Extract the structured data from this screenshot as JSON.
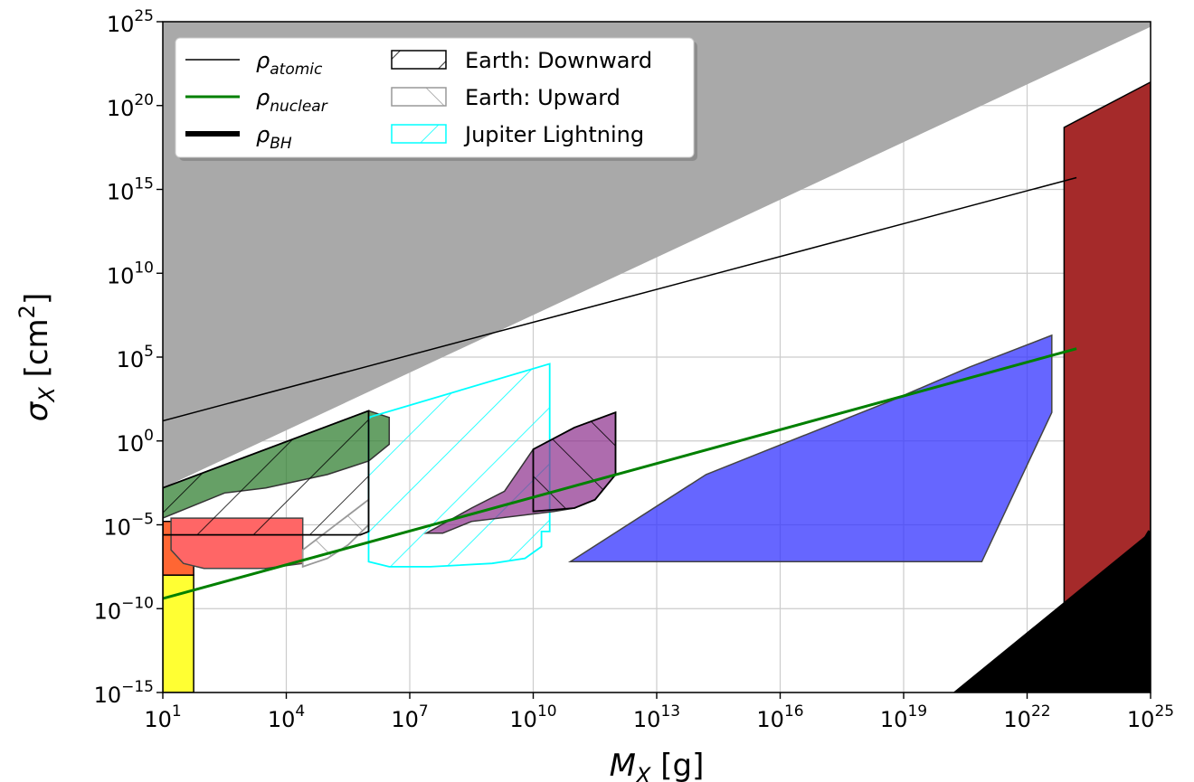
{
  "chart_data": {
    "type": "area",
    "xlabel": {
      "main": "M",
      "sub": "X",
      "unit": " [g]"
    },
    "ylabel": {
      "main": "σ",
      "sub": "X",
      "unit_pre": " [cm",
      "unit_sup": "2",
      "unit_post": "]"
    },
    "x_scale": "log",
    "y_scale": "log",
    "x_log_range": [
      1,
      25
    ],
    "y_log_range": [
      -15,
      25
    ],
    "grid": true,
    "x_ticks": [
      {
        "exp": 1,
        "base": "10",
        "sup": "1"
      },
      {
        "exp": 4,
        "base": "10",
        "sup": "4"
      },
      {
        "exp": 7,
        "base": "10",
        "sup": "7"
      },
      {
        "exp": 10,
        "base": "10",
        "sup": "10"
      },
      {
        "exp": 13,
        "base": "10",
        "sup": "13"
      },
      {
        "exp": 16,
        "base": "10",
        "sup": "16"
      },
      {
        "exp": 19,
        "base": "10",
        "sup": "19"
      },
      {
        "exp": 22,
        "base": "10",
        "sup": "22"
      },
      {
        "exp": 25,
        "base": "10",
        "sup": "25"
      }
    ],
    "y_ticks": [
      {
        "exp": -15,
        "base": "10",
        "sup": "−15"
      },
      {
        "exp": -10,
        "base": "10",
        "sup": "−10"
      },
      {
        "exp": -5,
        "base": "10",
        "sup": "−5"
      },
      {
        "exp": 0,
        "base": "10",
        "sup": "0"
      },
      {
        "exp": 5,
        "base": "10",
        "sup": "5"
      },
      {
        "exp": 10,
        "base": "10",
        "sup": "10"
      },
      {
        "exp": 15,
        "base": "10",
        "sup": "15"
      },
      {
        "exp": 20,
        "base": "10",
        "sup": "20"
      },
      {
        "exp": 25,
        "base": "10",
        "sup": "25"
      }
    ],
    "legend": {
      "position": "top-left",
      "entries": [
        {
          "main": "ρ",
          "sub": "atomic",
          "kind": "line",
          "color": "#000000",
          "width": 1.5
        },
        {
          "main": "ρ",
          "sub": "nuclear",
          "kind": "line",
          "color": "#008000",
          "width": 3
        },
        {
          "main": "ρ",
          "sub": "BH",
          "kind": "line",
          "color": "#000000",
          "width": 6
        },
        {
          "text": "Earth: Downward",
          "kind": "hatch",
          "color": "#000000",
          "hatch": "back"
        },
        {
          "text": "Earth: Upward",
          "kind": "hatch",
          "color": "#999999",
          "hatch": "fwd"
        },
        {
          "text": "Jupiter Lightning",
          "kind": "hatch",
          "color": "#00ffff",
          "hatch": "back"
        }
      ]
    },
    "series": [
      {
        "name": "ρ_atomic",
        "kind": "line",
        "color": "#000000",
        "width": 1.5,
        "points": [
          [
            1,
            1.2
          ],
          [
            23.2,
            15.7
          ]
        ]
      },
      {
        "name": "ρ_nuclear",
        "kind": "line",
        "color": "#008000",
        "width": 3,
        "points": [
          [
            1,
            -9.4
          ],
          [
            23.2,
            5.5
          ]
        ]
      },
      {
        "name": "ρ_BH",
        "kind": "line",
        "color": "#000000",
        "width": 6,
        "points": [
          [
            22.7,
            -15
          ],
          [
            25,
            -5.4
          ]
        ]
      }
    ],
    "regions": [
      {
        "kind": "fill",
        "color": "#a9a9a9",
        "edge": "none",
        "points": [
          [
            1,
            -2.8
          ],
          [
            25,
            24.7
          ],
          [
            25,
            25
          ],
          [
            1,
            25
          ]
        ]
      },
      {
        "kind": "fill",
        "color": "#ffff33",
        "edge": "#000000",
        "points": [
          [
            1,
            -15
          ],
          [
            1.75,
            -15
          ],
          [
            1.75,
            -8.0
          ],
          [
            1,
            -8.0
          ]
        ]
      },
      {
        "kind": "fill",
        "color": "#ff6633",
        "edge": "#000000",
        "points": [
          [
            1,
            -8.0
          ],
          [
            1.75,
            -8.0
          ],
          [
            1.75,
            -4.8
          ],
          [
            1,
            -4.8
          ]
        ]
      },
      {
        "kind": "fill",
        "color": "#ff6666",
        "edge": "#444444",
        "points": [
          [
            1.2,
            -4.6
          ],
          [
            4.4,
            -4.6
          ],
          [
            4.4,
            -7.3
          ],
          [
            3.5,
            -7.6
          ],
          [
            2.0,
            -7.6
          ],
          [
            1.5,
            -7.3
          ],
          [
            1.2,
            -6.5
          ]
        ]
      },
      {
        "kind": "fill",
        "color": "#338033",
        "alpha": 0.75,
        "edge": "#333333",
        "points": [
          [
            1,
            -2.8
          ],
          [
            6.0,
            1.8
          ],
          [
            6.5,
            1.4
          ],
          [
            6.5,
            -0.2
          ],
          [
            6.0,
            -1.2
          ],
          [
            5.0,
            -2.0
          ],
          [
            3.5,
            -2.8
          ],
          [
            2.5,
            -3.1
          ],
          [
            1,
            -4.6
          ]
        ]
      },
      {
        "kind": "hatch",
        "color": "#00ffff",
        "hatch": "back",
        "points": [
          [
            6.0,
            1.4
          ],
          [
            10.4,
            4.6
          ],
          [
            10.4,
            -5.4
          ],
          [
            10.2,
            -5.4
          ],
          [
            10.2,
            -6.3
          ],
          [
            9.8,
            -7.0
          ],
          [
            9.0,
            -7.3
          ],
          [
            7.5,
            -7.5
          ],
          [
            6.5,
            -7.5
          ],
          [
            6.0,
            -7.2
          ]
        ]
      },
      {
        "kind": "hatch",
        "color": "#999999",
        "hatch": "fwd",
        "points": [
          [
            4.4,
            -6.5
          ],
          [
            6.0,
            -3.5
          ],
          [
            6.0,
            -5.0
          ],
          [
            5.5,
            -6.2
          ],
          [
            5.0,
            -7.0
          ],
          [
            4.4,
            -7.5
          ]
        ]
      },
      {
        "kind": "hatch",
        "color": "#000000",
        "hatch": "back",
        "points": [
          [
            1,
            -2.8
          ],
          [
            6.0,
            1.8
          ],
          [
            6.0,
            -5.4
          ],
          [
            5.8,
            -5.6
          ],
          [
            1,
            -5.6
          ]
        ]
      },
      {
        "kind": "fill",
        "color": "#8b2e8b",
        "alpha": 0.7,
        "edge": "#333333",
        "points": [
          [
            7.4,
            -5.5
          ],
          [
            8.5,
            -4.0
          ],
          [
            9.3,
            -3.0
          ],
          [
            10.0,
            -0.5
          ],
          [
            11.0,
            0.8
          ],
          [
            12.0,
            1.7
          ],
          [
            12.0,
            -2.0
          ],
          [
            11.5,
            -3.5
          ],
          [
            11.0,
            -4.0
          ],
          [
            10.5,
            -4.2
          ],
          [
            8.5,
            -4.8
          ],
          [
            7.8,
            -5.5
          ]
        ]
      },
      {
        "kind": "hatch",
        "color": "#000000",
        "hatch": "fwd",
        "points": [
          [
            10.0,
            -0.5
          ],
          [
            11.0,
            0.8
          ],
          [
            12.0,
            1.7
          ],
          [
            12.0,
            -2.0
          ],
          [
            11.5,
            -3.5
          ],
          [
            11.0,
            -4.0
          ],
          [
            10.0,
            -4.2
          ]
        ]
      },
      {
        "kind": "fill",
        "color": "#3333ff",
        "alpha": 0.75,
        "edge": "#444444",
        "points": [
          [
            10.9,
            -7.2
          ],
          [
            20.9,
            -7.2
          ],
          [
            22.6,
            1.7
          ],
          [
            22.6,
            6.3
          ],
          [
            20.6,
            4.4
          ],
          [
            18.7,
            2.4
          ],
          [
            14.2,
            -2.0
          ]
        ]
      },
      {
        "kind": "fill",
        "color": "#a52a2a",
        "edge": "#000000",
        "points": [
          [
            22.9,
            -14.0
          ],
          [
            22.9,
            18.7
          ],
          [
            25,
            21.4
          ],
          [
            25,
            -5.4
          ]
        ]
      },
      {
        "kind": "fill",
        "color": "#000000",
        "edge": "none",
        "points": [
          [
            20.2,
            -15
          ],
          [
            25,
            -5.4
          ],
          [
            25,
            -15
          ]
        ]
      }
    ]
  }
}
